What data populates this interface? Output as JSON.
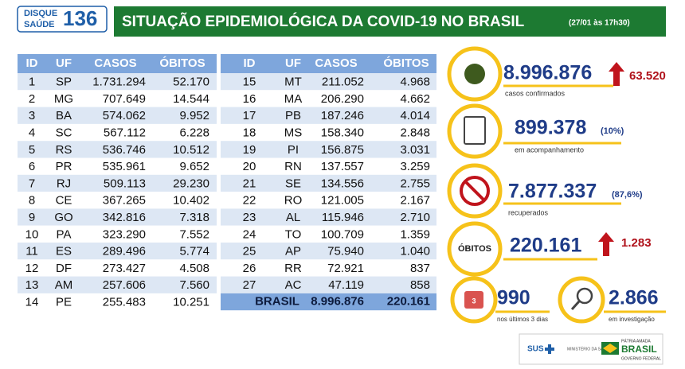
{
  "header": {
    "logo_top": "DISQUE",
    "logo_bottom": "SAÚDE",
    "logo_number": "136",
    "title": "SITUAÇÃO EPIDEMIOLÓGICA DA COVID-19 NO BRASIL",
    "date": "(27/01 às 17h30)"
  },
  "table": {
    "columns": [
      "ID",
      "UF",
      "CASOS",
      "ÓBITOS"
    ],
    "rows": [
      [
        "1",
        "SP",
        "1.731.294",
        "52.170"
      ],
      [
        "2",
        "MG",
        "707.649",
        "14.544"
      ],
      [
        "3",
        "BA",
        "574.062",
        "9.952"
      ],
      [
        "4",
        "SC",
        "567.112",
        "6.228"
      ],
      [
        "5",
        "RS",
        "536.746",
        "10.512"
      ],
      [
        "6",
        "PR",
        "535.961",
        "9.652"
      ],
      [
        "7",
        "RJ",
        "509.113",
        "29.230"
      ],
      [
        "8",
        "CE",
        "367.265",
        "10.402"
      ],
      [
        "9",
        "GO",
        "342.816",
        "7.318"
      ],
      [
        "10",
        "PA",
        "323.290",
        "7.552"
      ],
      [
        "11",
        "ES",
        "289.496",
        "5.774"
      ],
      [
        "12",
        "DF",
        "273.427",
        "4.508"
      ],
      [
        "13",
        "AM",
        "257.606",
        "7.560"
      ],
      [
        "14",
        "PE",
        "255.483",
        "10.251"
      ],
      [
        "15",
        "MT",
        "211.052",
        "4.968"
      ],
      [
        "16",
        "MA",
        "206.290",
        "4.662"
      ],
      [
        "17",
        "PB",
        "187.246",
        "4.014"
      ],
      [
        "18",
        "MS",
        "158.340",
        "2.848"
      ],
      [
        "19",
        "PI",
        "156.875",
        "3.031"
      ],
      [
        "20",
        "RN",
        "137.557",
        "3.259"
      ],
      [
        "21",
        "SE",
        "134.556",
        "2.755"
      ],
      [
        "22",
        "RO",
        "121.005",
        "2.167"
      ],
      [
        "23",
        "AL",
        "115.946",
        "2.710"
      ],
      [
        "24",
        "TO",
        "100.709",
        "1.359"
      ],
      [
        "25",
        "AP",
        "75.940",
        "1.040"
      ],
      [
        "26",
        "RR",
        "72.921",
        "837"
      ],
      [
        "27",
        "AC",
        "47.119",
        "858"
      ]
    ],
    "total": [
      "BRASIL",
      "8.996.876",
      "220.161"
    ]
  },
  "stats": {
    "confirmed": {
      "value": "8.996.876",
      "increase": "63.520",
      "label": "casos confirmados"
    },
    "monitoring": {
      "value": "899.378",
      "share": "(10%)",
      "label": "em acompanhamento"
    },
    "recovered": {
      "value": "7.877.337",
      "share": "(87,6%)",
      "label": "recuperados"
    },
    "deaths": {
      "badge": "ÓBITOS",
      "value": "220.161",
      "increase": "1.283"
    },
    "recent": {
      "icon": "3",
      "value": "990",
      "label": "nos últimos 3 dias"
    },
    "investigation": {
      "value": "2.866",
      "label": "em investigação"
    }
  },
  "footer": {
    "sus": "SUS",
    "ministry": "MINISTÉRIO DA SAÚDE",
    "slogan": "PÁTRIA AMADA",
    "country": "BRASIL",
    "government": "GOVERNO FEDERAL"
  }
}
